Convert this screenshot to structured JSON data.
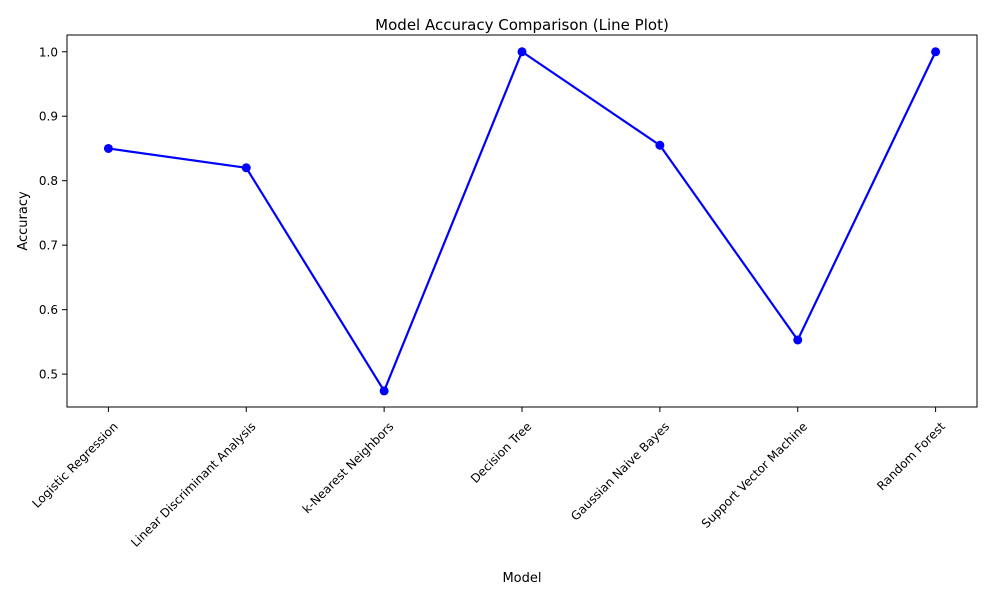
{
  "chart_data": {
    "type": "line",
    "title": "Model Accuracy Comparison (Line Plot)",
    "xlabel": "Model",
    "ylabel": "Accuracy",
    "categories": [
      "Logistic Regression",
      "Linear Discriminant Analysis",
      "k-Nearest Neighbors",
      "Decision Tree",
      "Gaussian Naive Bayes",
      "Support Vector Machine",
      "Random Forest"
    ],
    "series": [
      {
        "values": [
          0.85,
          0.82,
          0.474,
          1.0,
          0.855,
          0.553,
          1.0
        ],
        "color": "#0000ff",
        "marker": "circle"
      }
    ],
    "ylim": [
      0.449,
      1.026
    ],
    "yticks": [
      0.5,
      0.6,
      0.7,
      0.8,
      0.9,
      1.0
    ],
    "ytick_labels": [
      "0.5",
      "0.6",
      "0.7",
      "0.8",
      "0.9",
      "1.0"
    ],
    "grid": false,
    "legend": "none"
  }
}
